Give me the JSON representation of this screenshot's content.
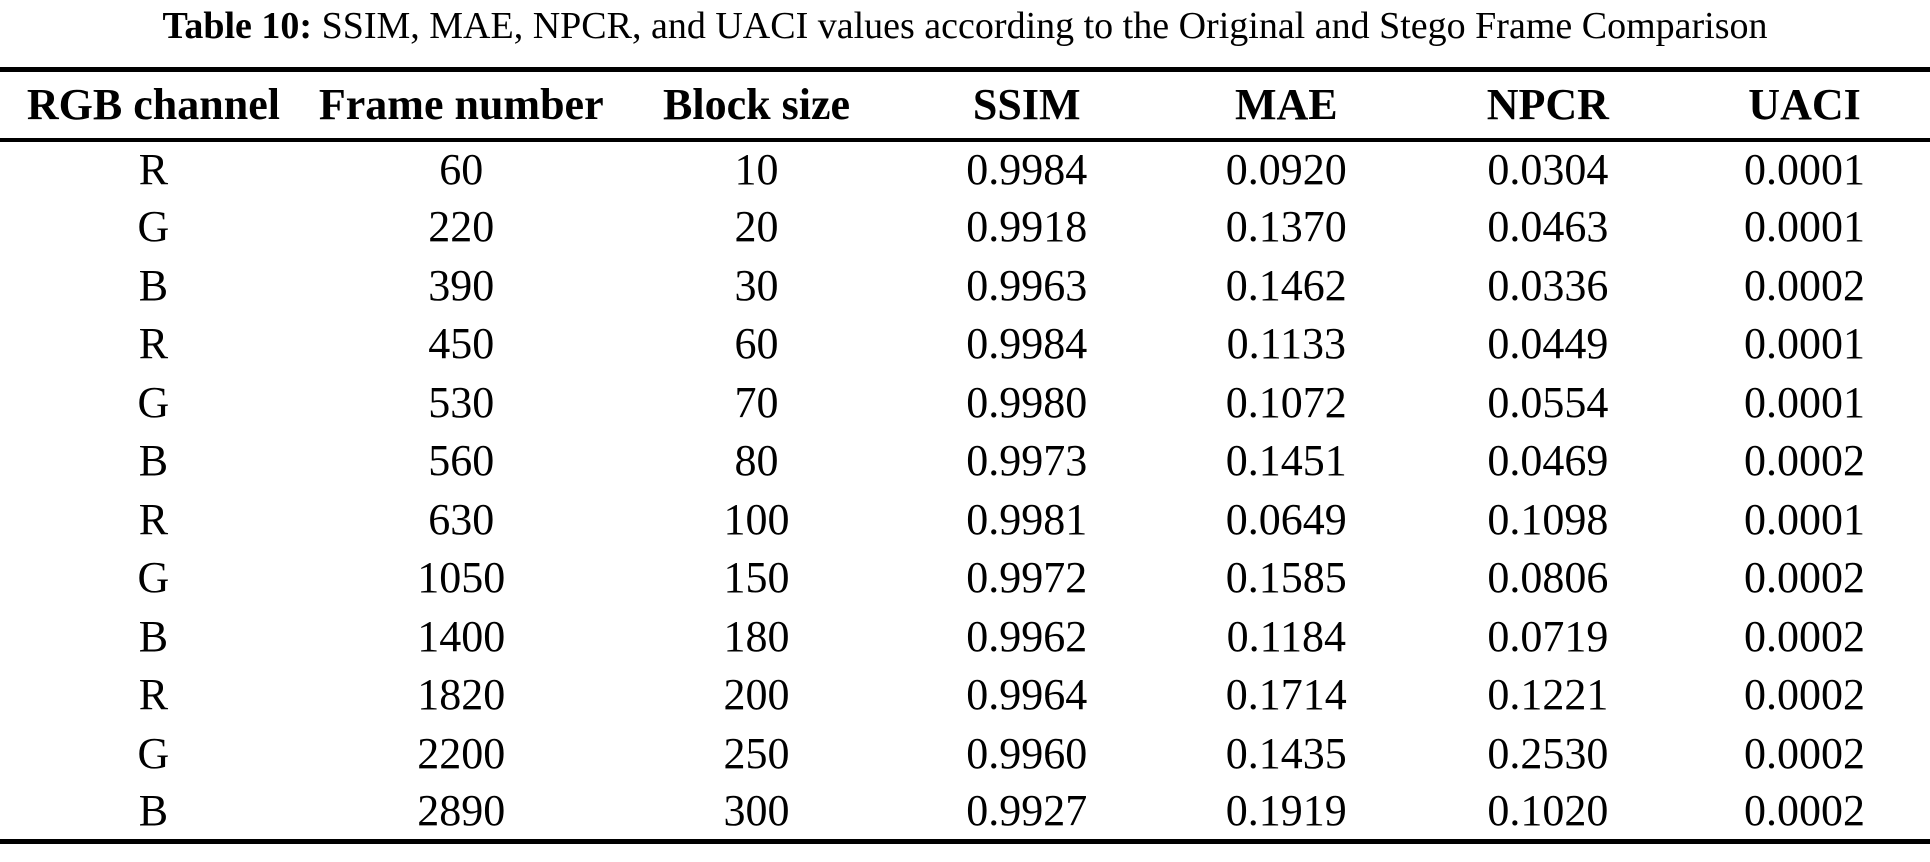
{
  "caption": {
    "label": "Table 10:",
    "text": " SSIM, MAE, NPCR, and UACI values according to the Original and Stego Frame Comparison"
  },
  "table": {
    "columns": [
      "RGB channel",
      "Frame number",
      "Block size",
      "SSIM",
      "MAE",
      "NPCR",
      "UACI"
    ],
    "rows": [
      [
        "R",
        "60",
        "10",
        "0.9984",
        "0.0920",
        "0.0304",
        "0.0001"
      ],
      [
        "G",
        "220",
        "20",
        "0.9918",
        "0.1370",
        "0.0463",
        "0.0001"
      ],
      [
        "B",
        "390",
        "30",
        "0.9963",
        "0.1462",
        "0.0336",
        "0.0002"
      ],
      [
        "R",
        "450",
        "60",
        "0.9984",
        "0.1133",
        "0.0449",
        "0.0001"
      ],
      [
        "G",
        "530",
        "70",
        "0.9980",
        "0.1072",
        "0.0554",
        "0.0001"
      ],
      [
        "B",
        "560",
        "80",
        "0.9973",
        "0.1451",
        "0.0469",
        "0.0002"
      ],
      [
        "R",
        "630",
        "100",
        "0.9981",
        "0.0649",
        "0.1098",
        "0.0001"
      ],
      [
        "G",
        "1050",
        "150",
        "0.9972",
        "0.1585",
        "0.0806",
        "0.0002"
      ],
      [
        "B",
        "1400",
        "180",
        "0.9962",
        "0.1184",
        "0.0719",
        "0.0002"
      ],
      [
        "R",
        "1820",
        "200",
        "0.9964",
        "0.1714",
        "0.1221",
        "0.0002"
      ],
      [
        "G",
        "2200",
        "250",
        "0.9960",
        "0.1435",
        "0.2530",
        "0.0002"
      ],
      [
        "B",
        "2890",
        "300",
        "0.9927",
        "0.1919",
        "0.1020",
        "0.0002"
      ]
    ]
  },
  "colors": {
    "background": "#ffffff",
    "text": "#000000",
    "rule": "#000000"
  }
}
